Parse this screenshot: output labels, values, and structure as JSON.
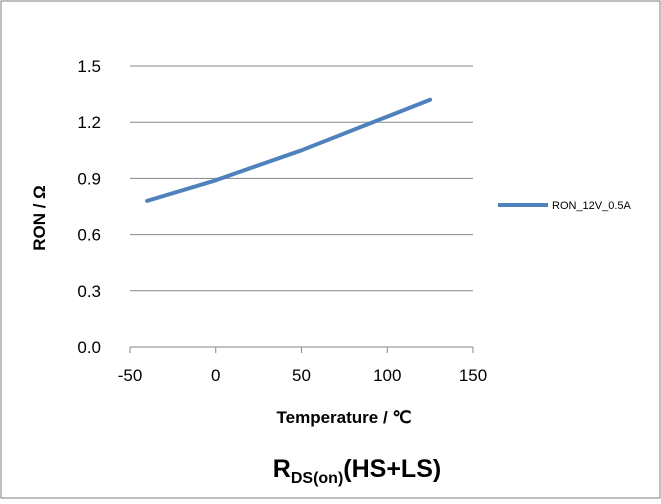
{
  "chart_data": {
    "type": "line",
    "title_main": "R",
    "title_sub": "DS(on)",
    "title_rest": "(HS+LS)",
    "xlabel": "Temperature / ℃",
    "ylabel": "RON / Ω",
    "xlim": [
      -50,
      150
    ],
    "ylim": [
      0.0,
      1.5
    ],
    "x_ticks": [
      -50,
      0,
      50,
      100,
      150
    ],
    "x_tick_labels": [
      "-50",
      "0",
      "50",
      "100",
      "150"
    ],
    "y_ticks": [
      0.0,
      0.3,
      0.6,
      0.9,
      1.2,
      1.5
    ],
    "y_tick_labels": [
      "0.0",
      "0.3",
      "0.6",
      "0.9",
      "1.2",
      "1.5"
    ],
    "grid": "horizontal",
    "legend_position": "right",
    "series": [
      {
        "name": "RON_12V_0.5A",
        "color": "#4f81bd",
        "x": [
          -40,
          0,
          25,
          50,
          75,
          100,
          125
        ],
        "y": [
          0.78,
          0.89,
          0.97,
          1.05,
          1.14,
          1.23,
          1.32
        ]
      }
    ]
  }
}
